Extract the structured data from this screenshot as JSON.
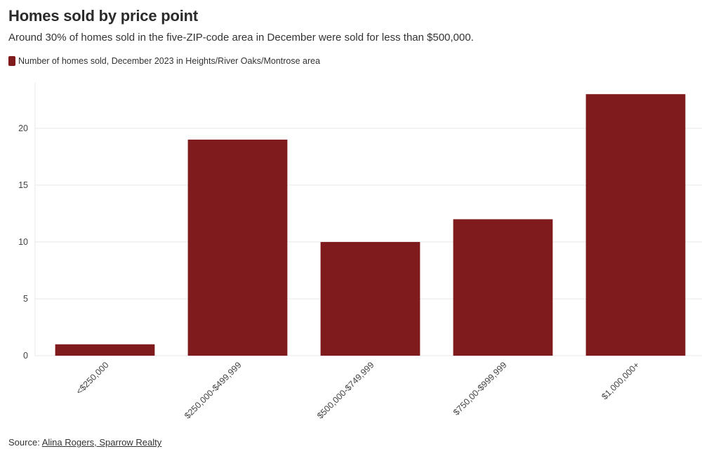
{
  "header": {
    "title": "Homes sold by price point",
    "subtitle": "Around 30% of homes sold in the five-ZIP-code area in December were sold for less than $500,000."
  },
  "legend": {
    "label": "Number of homes sold, December 2023 in Heights/River Oaks/Montrose area"
  },
  "footer": {
    "source_prefix": "Source:",
    "source_link": "Alina Rogers, Sparrow Realty"
  },
  "colors": {
    "bar": "#7f1a1d",
    "grid": "#e8e8e8",
    "tick_text": "#444444"
  },
  "chart_data": {
    "type": "bar",
    "title": "Homes sold by price point",
    "subtitle": "Around 30% of homes sold in the five-ZIP-code area in December were sold for less than $500,000.",
    "xlabel": "",
    "ylabel": "",
    "categories": [
      "<$250,000",
      "$250,000-$499,999",
      "$500,000-$749,999",
      "$750,00-$999,999",
      "$1,000,000+"
    ],
    "series": [
      {
        "name": "Number of homes sold, December 2023 in Heights/River Oaks/Montrose area",
        "values": [
          1,
          19,
          10,
          12,
          23
        ]
      }
    ],
    "ylim": [
      0,
      24
    ],
    "yticks": [
      0,
      5,
      10,
      15,
      20
    ],
    "grid": true,
    "legend_position": "top-left"
  }
}
